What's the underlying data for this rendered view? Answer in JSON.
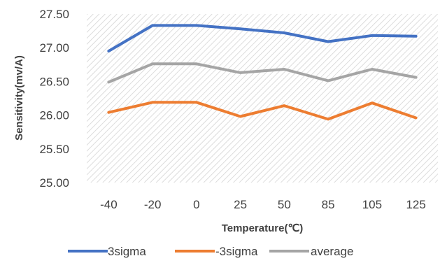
{
  "chart_data": {
    "type": "line",
    "title": "",
    "xlabel": "Temperature(℃)",
    "ylabel": "Sensitivity(mv/A)",
    "categories": [
      "-40",
      "-20",
      "0",
      "25",
      "50",
      "85",
      "105",
      "125"
    ],
    "ylim": [
      25.0,
      27.5
    ],
    "yticks": [
      "25.00",
      "25.50",
      "26.00",
      "26.50",
      "27.00",
      "27.50"
    ],
    "grid": false,
    "plot_background": "diagonal-hatch",
    "legend_position": "bottom",
    "series": [
      {
        "name": "3sigma",
        "color": "#4472C4",
        "values": [
          26.95,
          27.33,
          27.33,
          27.28,
          27.22,
          27.09,
          27.18,
          27.17
        ]
      },
      {
        "name": "-3sigma",
        "color": "#ED7D31",
        "values": [
          26.04,
          26.19,
          26.19,
          25.98,
          26.14,
          25.94,
          26.18,
          25.96
        ]
      },
      {
        "name": "average",
        "color": "#A5A5A5",
        "values": [
          26.49,
          26.76,
          26.76,
          26.63,
          26.68,
          26.51,
          26.68,
          26.56
        ]
      }
    ]
  }
}
